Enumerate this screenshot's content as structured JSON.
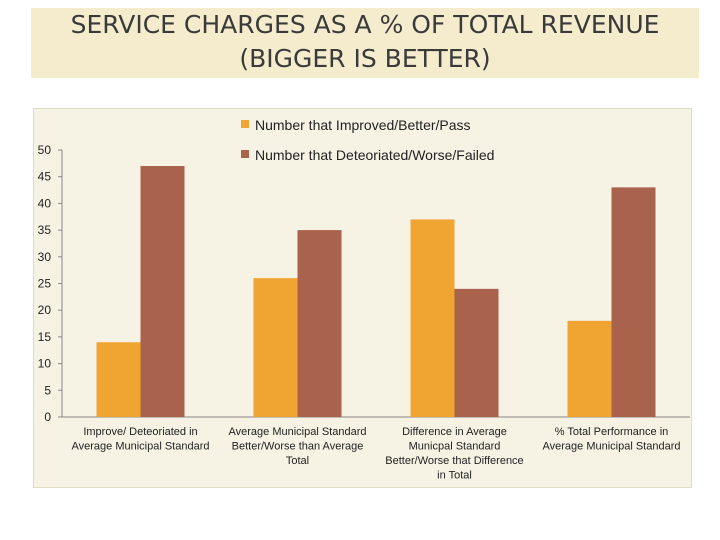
{
  "title": {
    "line1": "SERVICE CHARGES AS A % OF TOTAL REVENUE",
    "line2": "(BIGGER IS BETTER)"
  },
  "colors": {
    "improved": "#f0a431",
    "deteriorated": "#a9634c",
    "axis": "#888888"
  },
  "chart_data": {
    "type": "bar",
    "title": "",
    "xlabel": "",
    "ylabel": "",
    "ylim": [
      0,
      50
    ],
    "yticks": [
      0,
      5,
      10,
      15,
      20,
      25,
      30,
      35,
      40,
      45,
      50
    ],
    "legend_position": "top-right",
    "categories": [
      [
        "Improve/ Deteoriated in",
        "Average Municipal Standard"
      ],
      [
        "Average Municipal Standard",
        "Better/Worse than Average",
        "Total"
      ],
      [
        "Difference in Average",
        "Municpal Standard",
        "Better/Worse that Difference",
        "in Total"
      ],
      [
        "% Total Performance in",
        "Average Municipal Standard"
      ]
    ],
    "series": [
      {
        "name": "Number that Improved/Better/Pass",
        "values": [
          14,
          26,
          37,
          18
        ]
      },
      {
        "name": "Number that Deteoriated/Worse/Failed",
        "values": [
          47,
          35,
          24,
          43
        ]
      }
    ]
  }
}
